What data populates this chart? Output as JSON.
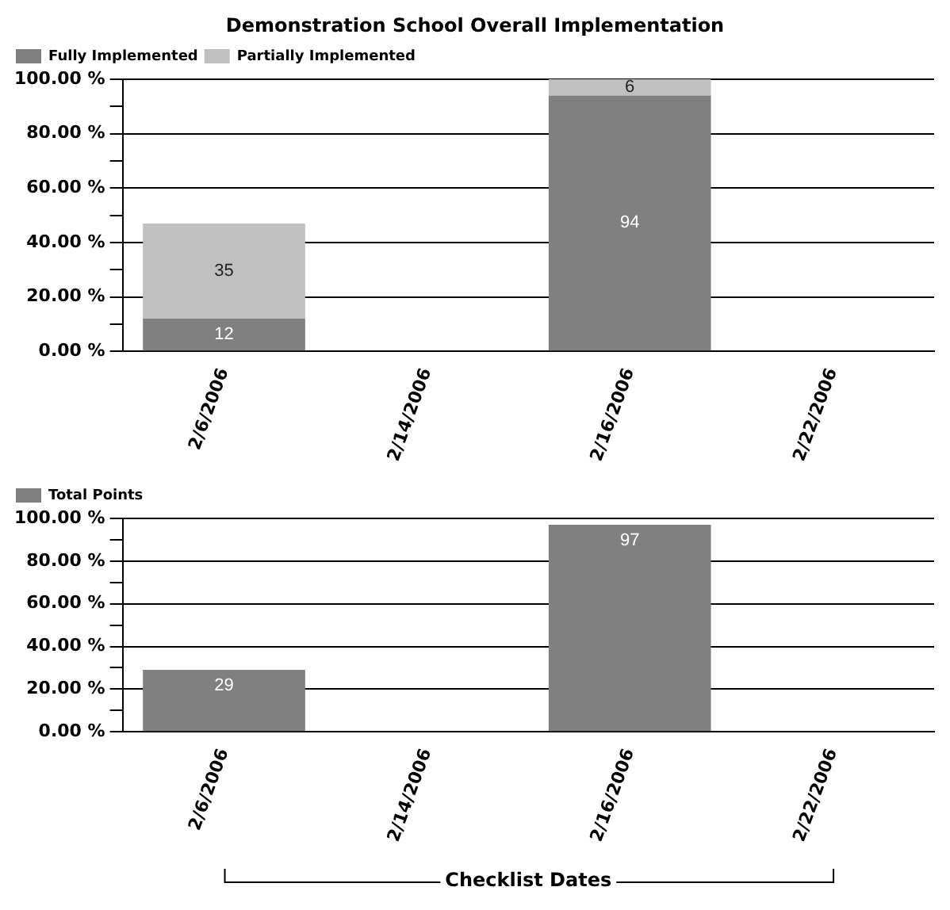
{
  "chart_data": [
    {
      "type": "bar",
      "title": "Demonstration School Overall Implementation",
      "categories": [
        "2/6/2006",
        "2/14/2006",
        "2/16/2006",
        "2/22/2006"
      ],
      "stacked": true,
      "series": [
        {
          "name": "Fully Implemented",
          "color": "#808080",
          "values": [
            12,
            null,
            94,
            null
          ]
        },
        {
          "name": "Partially Implemented",
          "color": "#c0c0c0",
          "values": [
            35,
            null,
            6,
            null
          ]
        }
      ],
      "ylim": [
        0,
        100
      ],
      "yticks": [
        {
          "value": 0,
          "label": "0.00 %"
        },
        {
          "value": 10,
          "label": null
        },
        {
          "value": 20,
          "label": "20.00 %"
        },
        {
          "value": 30,
          "label": null
        },
        {
          "value": 40,
          "label": "40.00 %"
        },
        {
          "value": 50,
          "label": null
        },
        {
          "value": 60,
          "label": "60.00 %"
        },
        {
          "value": 70,
          "label": null
        },
        {
          "value": 80,
          "label": "80.00 %"
        },
        {
          "value": 90,
          "label": null
        },
        {
          "value": 100,
          "label": "100.00 %"
        }
      ],
      "grid": "y",
      "legend": "top left",
      "data_labels": true
    },
    {
      "type": "bar",
      "xlabel": "Checklist Dates",
      "categories": [
        "2/6/2006",
        "2/14/2006",
        "2/16/2006",
        "2/22/2006"
      ],
      "series": [
        {
          "name": "Total Points",
          "color": "#808080",
          "values": [
            29,
            null,
            97,
            null
          ]
        }
      ],
      "ylim": [
        0,
        100
      ],
      "yticks": [
        {
          "value": 0,
          "label": "0.00 %"
        },
        {
          "value": 10,
          "label": null
        },
        {
          "value": 20,
          "label": "20.00 %"
        },
        {
          "value": 30,
          "label": null
        },
        {
          "value": 40,
          "label": "40.00 %"
        },
        {
          "value": 50,
          "label": null
        },
        {
          "value": 60,
          "label": "60.00 %"
        },
        {
          "value": 70,
          "label": null
        },
        {
          "value": 80,
          "label": "80.00 %"
        },
        {
          "value": 90,
          "label": null
        },
        {
          "value": 100,
          "label": "100.00 %"
        }
      ],
      "grid": "y",
      "legend": "top left",
      "data_labels": true
    }
  ]
}
